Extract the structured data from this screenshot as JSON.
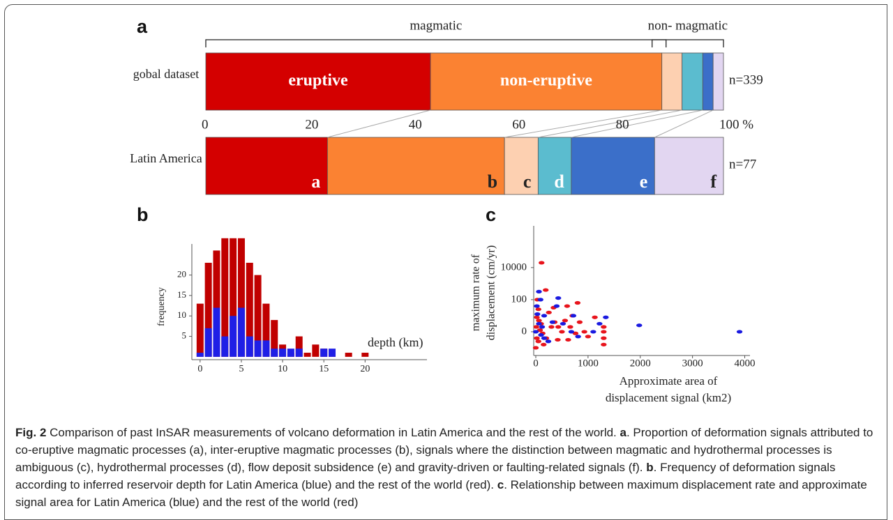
{
  "chart_data": [
    {
      "type": "stackedbar",
      "panel": "a",
      "categories": [
        "gobal dataset",
        "Latin America"
      ],
      "n_labels": [
        "n=339",
        "n=77"
      ],
      "brackets": [
        "magmatic",
        "non- magmatic"
      ],
      "xlim": [
        0,
        100
      ],
      "xticks": [
        0,
        20,
        40,
        60,
        80,
        {
          "value": 100,
          "label": "100 %"
        }
      ],
      "series": [
        {
          "color": "#d40000",
          "values": [
            43.4,
            23.5
          ],
          "labels": [
            "eruptive",
            "a"
          ],
          "label_colors": [
            "#ffffff",
            "#ffffff"
          ]
        },
        {
          "color": "#fb8232",
          "values": [
            44.7,
            34.2
          ],
          "labels": [
            "non-eruptive",
            "b"
          ],
          "label_colors": [
            "#ffffff",
            "#222222"
          ]
        },
        {
          "color": "#fdd0b1",
          "values": [
            3.9,
            6.5
          ],
          "labels": [
            null,
            "c"
          ],
          "label_colors": [
            null,
            "#222222"
          ]
        },
        {
          "color": "#5bbccf",
          "values": [
            4.0,
            6.4
          ],
          "labels": [
            null,
            "d"
          ],
          "label_colors": [
            null,
            "#ffffff"
          ]
        },
        {
          "color": "#3b6fc9",
          "values": [
            2.0,
            16.1
          ],
          "labels": [
            null,
            "e"
          ],
          "label_colors": [
            null,
            "#ffffff"
          ]
        },
        {
          "color": "#e2d6f1",
          "values": [
            2.0,
            13.3
          ],
          "labels": [
            null,
            "f"
          ],
          "label_colors": [
            null,
            "#222222"
          ]
        }
      ]
    },
    {
      "type": "bar",
      "panel": "b",
      "x_label": "depth (km)",
      "y_label": "frequency",
      "x": [
        0,
        1,
        2,
        3,
        4,
        5,
        6,
        7,
        8,
        9,
        10,
        11,
        12,
        13,
        14,
        15,
        16,
        17,
        18,
        19,
        20,
        21
      ],
      "xlim": [
        -1,
        27.5
      ],
      "xticks": [
        0,
        5,
        10,
        15,
        20
      ],
      "ylim": [
        -0.7,
        27.6
      ],
      "yticks": [
        5,
        10,
        15,
        20
      ],
      "series": [
        {
          "color": "#c00000",
          "values": [
            13,
            23,
            26,
            29,
            29,
            29,
            23,
            20,
            13,
            9,
            3,
            1,
            5,
            1,
            3,
            2,
            1,
            0,
            1,
            0,
            1,
            0
          ]
        },
        {
          "color": "#1f1fe6",
          "values": [
            1,
            7,
            12,
            5,
            10,
            12,
            5,
            4,
            4,
            2,
            2,
            2,
            2,
            0,
            0,
            2,
            2,
            0,
            0,
            0,
            0,
            0
          ]
        }
      ]
    },
    {
      "type": "scatter",
      "panel": "c",
      "x_label": [
        "Approximate area of",
        "displacement signal  (km2)"
      ],
      "y_label": [
        "maximum rate of",
        "displacement (cm/yr)"
      ],
      "xlim": [
        -40,
        4100
      ],
      "xticks": [
        0,
        1000,
        2000,
        3000,
        4000
      ],
      "ylim": [
        -1.48,
        6.6
      ],
      "yticks": [
        0,
        {
          "value": 2,
          "label": "100"
        },
        {
          "value": 4,
          "label": "10000"
        }
      ],
      "series": [
        {
          "color": "#e8141c",
          "x": [
            30,
            50,
            20,
            60,
            100,
            10,
            80,
            130,
            20,
            50,
            150,
            0,
            200,
            300,
            360,
            430,
            500,
            560,
            660,
            760,
            840,
            930,
            1130,
            1300,
            1300,
            1300,
            1300,
            600,
            800,
            110,
            190,
            250,
            420,
            620,
            1000,
            340,
            700
          ],
          "values": [
            2.0,
            1.4,
            0.9,
            0.7,
            0.5,
            0.3,
            0.1,
            -0.1,
            -0.4,
            -0.6,
            -0.8,
            -1.0,
            -0.4,
            0.3,
            0.6,
            0.3,
            0.0,
            0.7,
            0.3,
            -0.1,
            0.6,
            0.0,
            0.9,
            0.0,
            0.3,
            -0.4,
            -0.8,
            1.6,
            1.8,
            4.3,
            2.6,
            1.2,
            -0.5,
            -0.5,
            -0.3,
            1.5,
            1.0
          ]
        },
        {
          "color": "#1a1ae0",
          "x": [
            20,
            30,
            60,
            120,
            160,
            240,
            320,
            430,
            400,
            520,
            680,
            720,
            810,
            1100,
            1220,
            1340,
            1980,
            3900,
            90,
            160,
            0,
            60,
            100
          ],
          "values": [
            1.6,
            1.1,
            0.5,
            0.3,
            -0.4,
            -0.6,
            0.6,
            2.1,
            1.6,
            0.5,
            0.0,
            1.0,
            -0.3,
            0.0,
            0.5,
            0.9,
            0.4,
            0.0,
            2.0,
            1.0,
            0.0,
            2.5,
            -0.2
          ]
        }
      ]
    }
  ],
  "caption": {
    "runs": [
      {
        "text": "Fig. 2",
        "bold": true
      },
      {
        "text": " Comparison of past InSAR measurements of volcano deformation in Latin America and the rest of the world. ",
        "bold": false
      },
      {
        "text": "a",
        "bold": true
      },
      {
        "text": ". Proportion of deformation signals attributed to co-eruptive magmatic processes (a), inter-eruptive magmatic processes (b), signals where the distinction between magmatic and hydrothermal processes is ambiguous (c), hydrothermal processes (d), flow deposit subsidence (e) and gravity-driven or faulting-related signals (f). ",
        "bold": false
      },
      {
        "text": "b",
        "bold": true
      },
      {
        "text": ". Frequency of deformation signals according to inferred reservoir depth for Latin America (blue) and the rest of the world (red). ",
        "bold": false
      },
      {
        "text": "c",
        "bold": true
      },
      {
        "text": ". Relationship between maximum displacement rate and approximate signal area for Latin America (blue) and the rest of the world (red)",
        "bold": false
      }
    ]
  }
}
